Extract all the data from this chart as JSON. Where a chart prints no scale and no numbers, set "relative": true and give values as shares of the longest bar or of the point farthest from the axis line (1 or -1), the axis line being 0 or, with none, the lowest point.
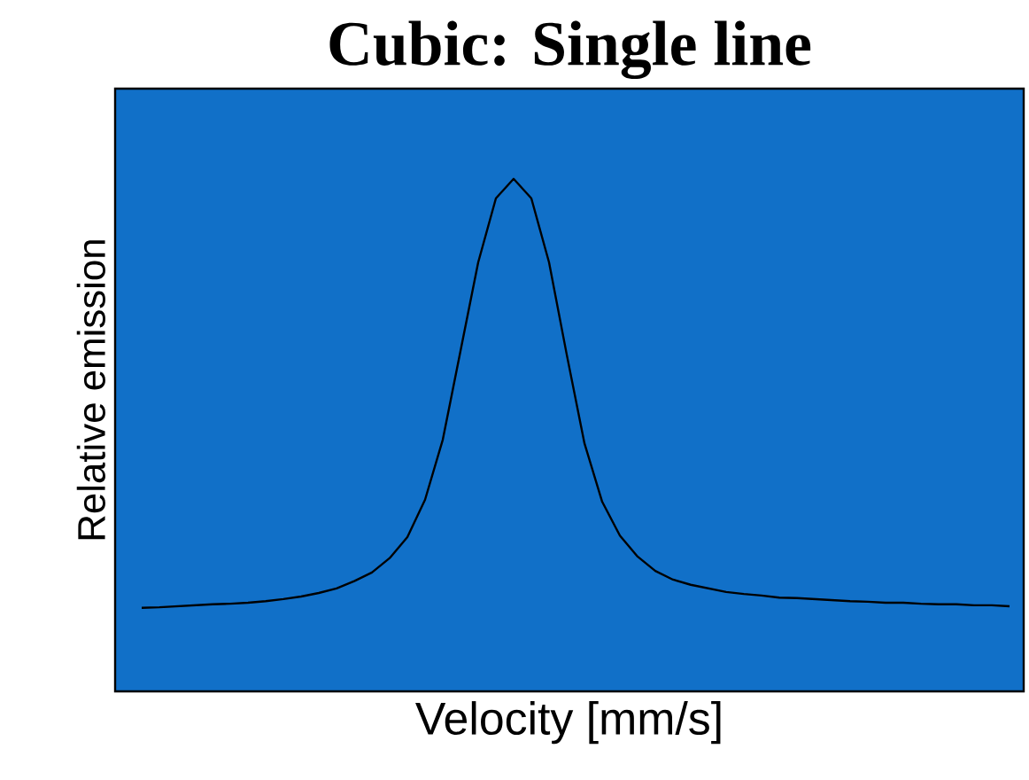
{
  "chart_data": {
    "type": "line",
    "title": "Cubic: Single line",
    "xlabel": "Velocity [mm/s]",
    "ylabel": "Relative emission",
    "relative": true,
    "categories": [
      null,
      null,
      null,
      null,
      null,
      null,
      null,
      null,
      null,
      null,
      null,
      null,
      null,
      null,
      null,
      null,
      null,
      null,
      null,
      null,
      null,
      null,
      null,
      null,
      null,
      null,
      null,
      null,
      null,
      null,
      null,
      null,
      null,
      null,
      null,
      null,
      null,
      null,
      null,
      null,
      null,
      null,
      null,
      null,
      null,
      null,
      null,
      null,
      null,
      null
    ],
    "series": [
      {
        "color": "#000000",
        "values": [
          0.163,
          0.164,
          0.166,
          0.168,
          0.17,
          0.171,
          0.173,
          0.176,
          0.18,
          0.185,
          0.192,
          0.201,
          0.215,
          0.232,
          0.26,
          0.301,
          0.374,
          0.491,
          0.664,
          0.837,
          0.962,
          1,
          0.962,
          0.837,
          0.657,
          0.484,
          0.37,
          0.304,
          0.263,
          0.235,
          0.218,
          0.208,
          0.201,
          0.194,
          0.19,
          0.187,
          0.183,
          0.182,
          0.18,
          0.178,
          0.176,
          0.175,
          0.173,
          0.173,
          0.171,
          0.17,
          0.17,
          0.168,
          0.168,
          0.166
        ]
      }
    ],
    "marker": "none",
    "line_style": "solid"
  }
}
